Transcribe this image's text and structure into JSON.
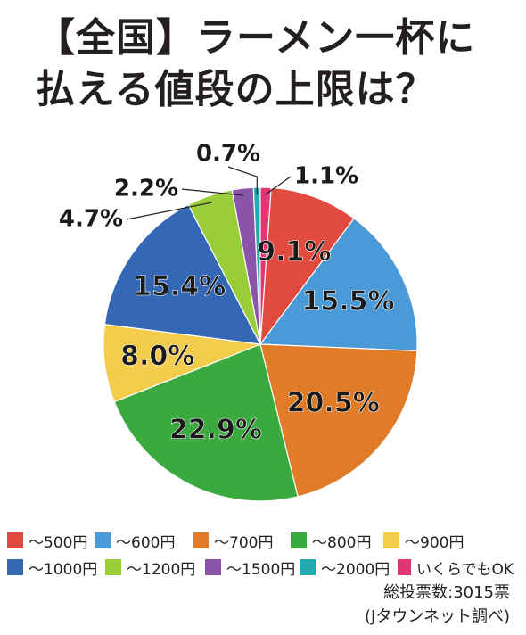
{
  "title_lines": [
    "【全国】ラーメン一杯に",
    "払える値段の上限は？"
  ],
  "chart_data": {
    "type": "pie",
    "title": "【全国】ラーメン一杯に払える値段の上限は？",
    "categories": [
      "～500円",
      "～600円",
      "～700円",
      "～800円",
      "～900円",
      "～1000円",
      "～1200円",
      "～1500円",
      "～2000円",
      "いくらでもOK"
    ],
    "values": [
      9.1,
      15.5,
      20.5,
      22.9,
      8.0,
      15.4,
      4.7,
      2.2,
      0.7,
      1.1
    ],
    "labels": [
      "9.1%",
      "15.5%",
      "20.5%",
      "22.9%",
      "8.0%",
      "15.4%",
      "4.7%",
      "2.2%",
      "0.7%",
      "1.1%"
    ],
    "colors": [
      "#e04a3f",
      "#4a9ad8",
      "#e07c28",
      "#3aaa3e",
      "#f2cc4a",
      "#3468b4",
      "#9acd3a",
      "#8a55a8",
      "#22aab0",
      "#e23674"
    ],
    "start": "top, clockwise from いくらでもOK slice"
  },
  "legend": {
    "rows": [
      [
        {
          "label": "～500円",
          "color": "#e04a3f"
        },
        {
          "label": "～600円",
          "color": "#4a9ad8"
        },
        {
          "label": "～700円",
          "color": "#e07c28"
        },
        {
          "label": "～800円",
          "color": "#3aaa3e"
        },
        {
          "label": "～900円",
          "color": "#f2cc4a"
        }
      ],
      [
        {
          "label": "～1000円",
          "color": "#3468b4"
        },
        {
          "label": "～1200円",
          "color": "#9acd3a"
        },
        {
          "label": "～1500円",
          "color": "#8a55a8"
        },
        {
          "label": "～2000円",
          "color": "#22aab0"
        },
        {
          "label": "いくらでもOK",
          "color": "#e23674"
        }
      ]
    ]
  },
  "footer": {
    "total": "総投票数:3015票",
    "source": "(Jタウンネット調べ)"
  }
}
